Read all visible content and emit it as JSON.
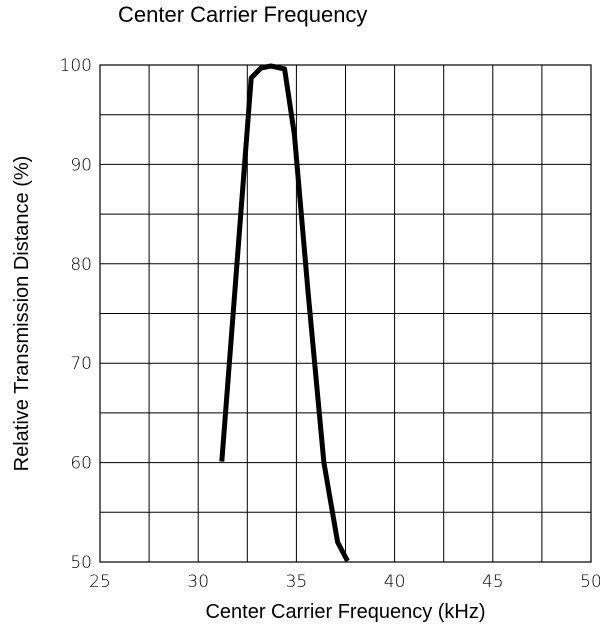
{
  "chart_data": {
    "type": "line",
    "title": "Center Carrier Frequency",
    "xlabel": "Center Carrier Frequency  (kHz)",
    "ylabel": "Relative Transmission Distance (%)",
    "xlim": [
      25,
      50
    ],
    "ylim": [
      50,
      100
    ],
    "x_ticks": [
      25,
      30,
      35,
      40,
      45,
      50
    ],
    "y_ticks": [
      50,
      60,
      70,
      80,
      90,
      100
    ],
    "x_minor_step": 2.5,
    "y_minor_step": 5,
    "grid": true,
    "series": [
      {
        "color": "#000000",
        "points": [
          [
            31.2,
            60.1
          ],
          [
            32.7,
            98.7
          ],
          [
            33.2,
            99.7
          ],
          [
            33.7,
            99.9
          ],
          [
            34.4,
            99.6
          ],
          [
            34.9,
            93.0
          ],
          [
            35.6,
            77.0
          ],
          [
            36.4,
            60.0
          ],
          [
            37.1,
            52.0
          ],
          [
            37.6,
            50.1
          ]
        ]
      }
    ]
  }
}
